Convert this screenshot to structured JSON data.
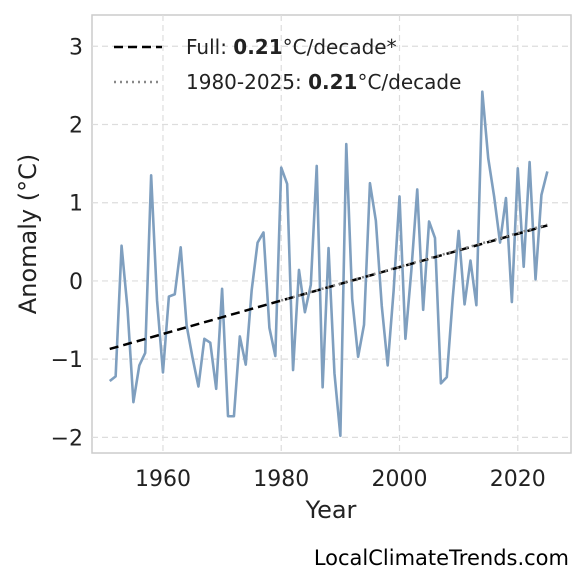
{
  "chart_data": {
    "type": "line",
    "xlabel": "Year",
    "ylabel": "Anomaly (°C)",
    "xlim": [
      1948,
      2029
    ],
    "ylim": [
      -2.2,
      3.4
    ],
    "xticks": [
      1960,
      1980,
      2000,
      2020
    ],
    "yticks": [
      -2,
      -1,
      0,
      1,
      2,
      3
    ],
    "ytick_labels": [
      "−2",
      "−1",
      "0",
      "1",
      "2",
      "3"
    ],
    "grid": true,
    "legend_position": "top-left",
    "series": [
      {
        "style": "solid",
        "color": "#7f9fbf",
        "x": [
          1951,
          1952,
          1953,
          1954,
          1955,
          1956,
          1957,
          1958,
          1959,
          1960,
          1961,
          1962,
          1963,
          1964,
          1965,
          1966,
          1967,
          1968,
          1969,
          1970,
          1971,
          1972,
          1973,
          1974,
          1975,
          1976,
          1977,
          1978,
          1979,
          1980,
          1981,
          1982,
          1983,
          1984,
          1985,
          1986,
          1987,
          1988,
          1989,
          1990,
          1991,
          1992,
          1993,
          1994,
          1995,
          1996,
          1997,
          1998,
          1999,
          2000,
          2001,
          2002,
          2003,
          2004,
          2005,
          2006,
          2007,
          2008,
          2009,
          2010,
          2011,
          2012,
          2013,
          2014,
          2015,
          2016,
          2017,
          2018,
          2019,
          2020,
          2021,
          2022,
          2023,
          2024,
          2025
        ],
        "values": [
          -1.28,
          -1.22,
          0.45,
          -0.35,
          -1.55,
          -1.08,
          -0.92,
          1.35,
          -0.25,
          -1.17,
          -0.2,
          -0.17,
          0.43,
          -0.57,
          -0.98,
          -1.35,
          -0.74,
          -0.79,
          -1.38,
          -0.1,
          -1.73,
          -1.73,
          -0.71,
          -1.07,
          -0.12,
          0.49,
          0.62,
          -0.6,
          -0.96,
          1.45,
          1.24,
          -1.14,
          0.14,
          -0.4,
          -0.05,
          1.47,
          -1.36,
          0.42,
          -1.18,
          -1.98,
          1.75,
          -0.23,
          -0.97,
          -0.56,
          1.25,
          0.77,
          -0.32,
          -1.08,
          -0.13,
          1.08,
          -0.74,
          0.13,
          1.17,
          -0.37,
          0.76,
          0.55,
          -1.31,
          -1.23,
          -0.22,
          0.64,
          -0.3,
          0.26,
          -0.31,
          2.42,
          1.57,
          1.08,
          0.49,
          1.06,
          -0.27,
          1.44,
          0.18,
          1.52,
          0.02,
          1.1,
          1.4
        ]
      },
      {
        "name": "Full: 0.21°C/decade*",
        "style": "dashed",
        "color": "#000000",
        "x": [
          1951,
          2025
        ],
        "values": [
          -0.87,
          0.71
        ]
      },
      {
        "name": "1980-2025: 0.21°C/decade",
        "style": "dotted",
        "color": "#888888",
        "x": [
          1980,
          2025
        ],
        "values": [
          -0.25,
          0.72
        ]
      }
    ],
    "legend": [
      {
        "prefix": "Full: ",
        "bold": "0.21",
        "suffix": "°C/decade*"
      },
      {
        "prefix": "1980-2025: ",
        "bold": "0.21",
        "suffix": "°C/decade"
      }
    ]
  },
  "credit": "LocalClimateTrends.com"
}
